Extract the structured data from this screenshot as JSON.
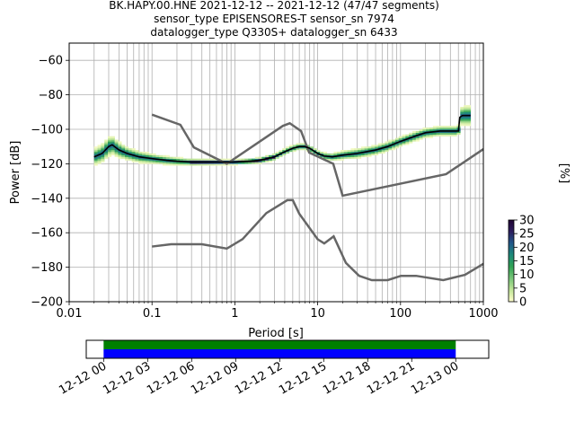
{
  "title": {
    "line1": "BK.HAPY.00.HNE   2021-12-12 -- 2021-12-12  (47/47 segments)",
    "line2": "sensor_type EPISENSORES-T sensor_sn 7974",
    "line3": "datalogger_type Q330S+ datalogger_sn 6433"
  },
  "chart_data": [
    {
      "type": "heatmap",
      "xlabel": "Period [s]",
      "ylabel": "Power [dB]",
      "xscale": "log",
      "xlim": [
        0.01,
        1000
      ],
      "ylim": [
        -200,
        -50
      ],
      "grid": true,
      "x_ticks": [
        0.01,
        0.1,
        1,
        10,
        100,
        1000
      ],
      "x_tick_labels": [
        "0.01",
        "0.1",
        "1",
        "10",
        "100",
        "1000"
      ],
      "y_ticks": [
        -200,
        -180,
        -160,
        -140,
        -120,
        -100,
        -80,
        -60
      ],
      "y_tick_labels": [
        "−200",
        "−180",
        "−160",
        "−140",
        "−120",
        "−100",
        "−80",
        "−60"
      ],
      "colorbar": {
        "label": "[%]",
        "range": [
          0,
          30
        ],
        "ticks": [
          0,
          5,
          10,
          15,
          20,
          25,
          30
        ],
        "tick_labels": [
          "0",
          "5",
          "10",
          "15",
          "20",
          "25",
          "30"
        ],
        "colormap": [
          "#ffffcc",
          "#c2e699",
          "#78c679",
          "#31a354",
          "#1d8a7a",
          "#21588a",
          "#2d1e5f",
          "#200433"
        ]
      },
      "noise_model_high": {
        "x": [
          0.1,
          0.22,
          0.32,
          0.8,
          3.8,
          4.6,
          6.3,
          7.9,
          15.4,
          20,
          354.8,
          1000
        ],
        "y": [
          -91.5,
          -97.4,
          -110.5,
          -120.0,
          -98.0,
          -96.5,
          -101.0,
          -113.5,
          -120.0,
          -138.5,
          -126.0,
          -111.5
        ]
      },
      "noise_model_low": {
        "x": [
          0.1,
          0.17,
          0.4,
          0.8,
          1.24,
          2.4,
          4.3,
          5.0,
          6.0,
          10.0,
          12.0,
          15.6,
          21.9,
          31.6,
          45.0,
          70.0,
          101.0,
          154.0,
          328.0,
          600.0,
          1000.0
        ],
        "y": [
          -168.0,
          -166.7,
          -166.7,
          -169.2,
          -163.7,
          -148.6,
          -141.1,
          -141.1,
          -149.0,
          -163.8,
          -166.2,
          -162.1,
          -177.5,
          -185.0,
          -187.5,
          -187.5,
          -185.0,
          -185.0,
          -187.5,
          -184.4,
          -178.0
        ]
      },
      "mode_line": {
        "x": [
          0.02,
          0.025,
          0.03,
          0.033,
          0.04,
          0.05,
          0.07,
          0.1,
          0.15,
          0.2,
          0.3,
          0.5,
          0.8,
          1,
          1.5,
          2,
          3,
          4,
          5,
          6,
          7,
          8,
          10,
          12,
          15,
          20,
          30,
          50,
          70,
          100,
          150,
          200,
          300,
          400,
          500,
          520,
          560,
          700
        ],
        "y": [
          -116,
          -114,
          -110,
          -109,
          -112,
          -114,
          -116,
          -117,
          -118,
          -118.5,
          -119,
          -119,
          -119,
          -119,
          -118.5,
          -118,
          -116,
          -113,
          -111,
          -110,
          -110,
          -111,
          -114,
          -115.5,
          -116,
          -115,
          -114,
          -112,
          -110,
          -107,
          -104,
          -102,
          -101,
          -101,
          -101,
          -93,
          -92,
          -92
        ]
      },
      "spread_half_width_db": {
        "x": [
          0.02,
          0.03,
          0.05,
          0.1,
          0.3,
          1,
          3,
          10,
          30,
          100,
          300,
          500,
          560,
          700
        ],
        "y": [
          5,
          6,
          4,
          3,
          2,
          1.5,
          2,
          2,
          3,
          3,
          3,
          3,
          6,
          6
        ]
      }
    },
    {
      "type": "timeline",
      "xlim": [
        "2021-12-11 22:49",
        "2021-12-13 02:15"
      ],
      "x_ticks": [
        "12-12 00",
        "12-12 03",
        "12-12 06",
        "12-12 09",
        "12-12 12",
        "12-12 15",
        "12-12 18",
        "12-12 21",
        "12-13 00"
      ],
      "x_tick_hours": [
        0,
        3,
        6,
        9,
        12,
        15,
        18,
        21,
        24
      ],
      "bars": [
        {
          "row": "top",
          "start_hour": 0,
          "end_hour": 24,
          "color": "#008000"
        },
        {
          "row": "bottom",
          "start_hour": 0,
          "end_hour": 24,
          "color": "#0000ff"
        }
      ]
    }
  ]
}
